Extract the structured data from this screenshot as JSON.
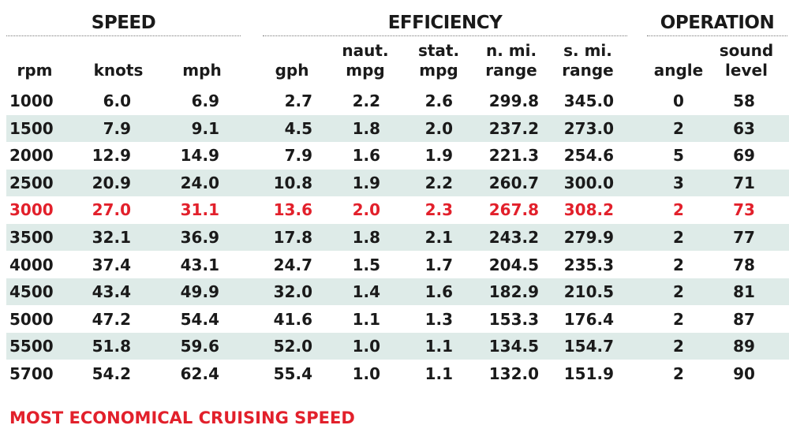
{
  "table": {
    "groups": [
      "SPEED",
      "EFFICIENCY",
      "OPERATION"
    ],
    "headers": [
      [
        "rpm"
      ],
      [
        "knots"
      ],
      [
        "mph"
      ],
      [
        "gph"
      ],
      [
        "naut.",
        "mpg"
      ],
      [
        "stat.",
        "mpg"
      ],
      [
        "n. mi.",
        "range"
      ],
      [
        "s. mi.",
        "range"
      ],
      [
        "angle"
      ],
      [
        "sound",
        "level"
      ]
    ],
    "rows": [
      [
        "1000",
        "6.0",
        "6.9",
        "2.7",
        "2.2",
        "2.6",
        "299.8",
        "345.0",
        "0",
        "58"
      ],
      [
        "1500",
        "7.9",
        "9.1",
        "4.5",
        "1.8",
        "2.0",
        "237.2",
        "273.0",
        "2",
        "63"
      ],
      [
        "2000",
        "12.9",
        "14.9",
        "7.9",
        "1.6",
        "1.9",
        "221.3",
        "254.6",
        "5",
        "69"
      ],
      [
        "2500",
        "20.9",
        "24.0",
        "10.8",
        "1.9",
        "2.2",
        "260.7",
        "300.0",
        "3",
        "71"
      ],
      [
        "3000",
        "27.0",
        "31.1",
        "13.6",
        "2.0",
        "2.3",
        "267.8",
        "308.2",
        "2",
        "73"
      ],
      [
        "3500",
        "32.1",
        "36.9",
        "17.8",
        "1.8",
        "2.1",
        "243.2",
        "279.9",
        "2",
        "77"
      ],
      [
        "4000",
        "37.4",
        "43.1",
        "24.7",
        "1.5",
        "1.7",
        "204.5",
        "235.3",
        "2",
        "78"
      ],
      [
        "4500",
        "43.4",
        "49.9",
        "32.0",
        "1.4",
        "1.6",
        "182.9",
        "210.5",
        "2",
        "81"
      ],
      [
        "5000",
        "47.2",
        "54.4",
        "41.6",
        "1.1",
        "1.3",
        "153.3",
        "176.4",
        "2",
        "87"
      ],
      [
        "5500",
        "51.8",
        "59.6",
        "52.0",
        "1.0",
        "1.1",
        "134.5",
        "154.7",
        "2",
        "89"
      ],
      [
        "5700",
        "54.2",
        "62.4",
        "55.4",
        "1.0",
        "1.1",
        "132.0",
        "151.9",
        "2",
        "90"
      ]
    ],
    "highlight_row": 4,
    "footnote": "MOST ECONOMICAL CRUISING SPEED"
  }
}
